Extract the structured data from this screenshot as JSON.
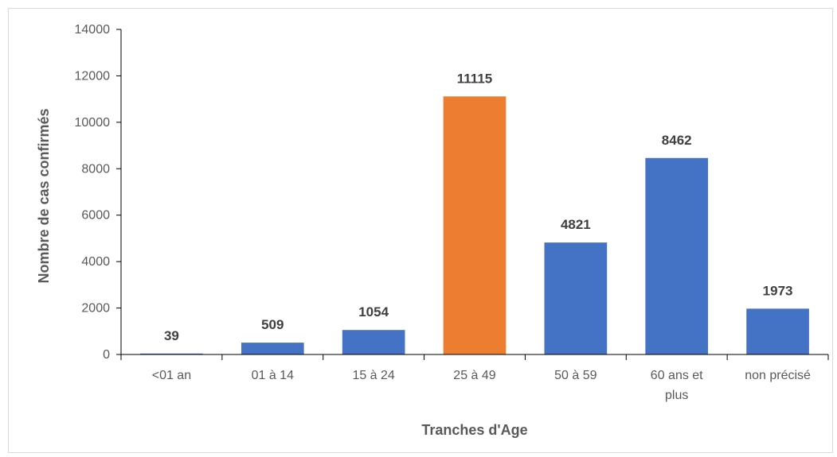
{
  "chart_data": {
    "type": "bar",
    "title": "",
    "xlabel": "Tranches d'Age",
    "ylabel": "Nombre de cas confirmés",
    "categories": [
      "<01 an",
      "01 à 14",
      "15 à  24",
      "25 à 49",
      "50 à 59",
      "60 ans et plus",
      "non précisé"
    ],
    "values": [
      39,
      509,
      1054,
      11115,
      4821,
      8462,
      1973
    ],
    "value_labels": [
      "39",
      "509",
      "1054",
      "11115",
      "4821",
      "8462",
      "1973"
    ],
    "bar_colors": [
      "#4472c4",
      "#4472c4",
      "#4472c4",
      "#ed7d31",
      "#4472c4",
      "#4472c4",
      "#4472c4"
    ],
    "ylim": [
      0,
      14000
    ],
    "yticks": [
      0,
      2000,
      4000,
      6000,
      8000,
      10000,
      12000,
      14000
    ],
    "ytick_labels": [
      "0",
      "2000",
      "4000",
      "6000",
      "8000",
      "10000",
      "12000",
      "14000"
    ],
    "grid": false,
    "legend": "none"
  }
}
